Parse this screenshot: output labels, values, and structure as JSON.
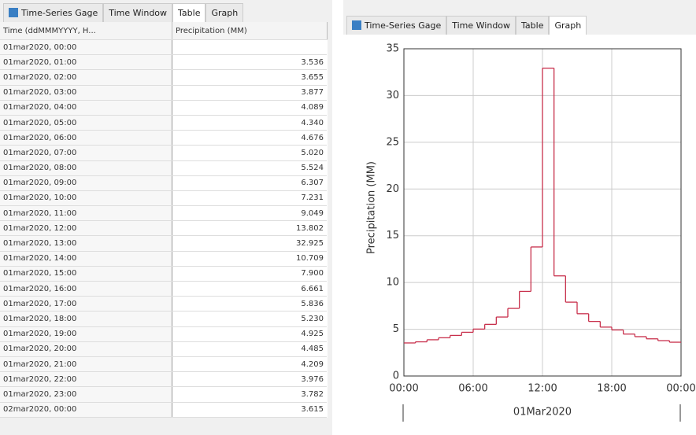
{
  "left_panel": {
    "tabs": [
      "Time-Series Gage",
      "Time Window",
      "Table",
      "Graph"
    ],
    "table": {
      "headers": [
        "Time (ddMMMYYYY, H...",
        "Precipitation (MM)"
      ],
      "rows": [
        [
          "01mar2020, 00:00",
          ""
        ],
        [
          "01mar2020, 01:00",
          "3.536"
        ],
        [
          "01mar2020, 02:00",
          "3.655"
        ],
        [
          "01mar2020, 03:00",
          "3.877"
        ],
        [
          "01mar2020, 04:00",
          "4.089"
        ],
        [
          "01mar2020, 05:00",
          "4.340"
        ],
        [
          "01mar2020, 06:00",
          "4.676"
        ],
        [
          "01mar2020, 07:00",
          "5.020"
        ],
        [
          "01mar2020, 08:00",
          "5.524"
        ],
        [
          "01mar2020, 09:00",
          "6.307"
        ],
        [
          "01mar2020, 10:00",
          "7.231"
        ],
        [
          "01mar2020, 11:00",
          "9.049"
        ],
        [
          "01mar2020, 12:00",
          "13.802"
        ],
        [
          "01mar2020, 13:00",
          "32.925"
        ],
        [
          "01mar2020, 14:00",
          "10.709"
        ],
        [
          "01mar2020, 15:00",
          "7.900"
        ],
        [
          "01mar2020, 16:00",
          "6.661"
        ],
        [
          "01mar2020, 17:00",
          "5.836"
        ],
        [
          "01mar2020, 18:00",
          "5.230"
        ],
        [
          "01mar2020, 19:00",
          "4.925"
        ],
        [
          "01mar2020, 20:00",
          "4.485"
        ],
        [
          "01mar2020, 21:00",
          "4.209"
        ],
        [
          "01mar2020, 22:00",
          "3.976"
        ],
        [
          "01mar2020, 23:00",
          "3.782"
        ],
        [
          "02mar2020, 00:00",
          "3.615"
        ]
      ]
    }
  },
  "right_panel": {
    "tabs": [
      "Time-Series Gage",
      "Time Window",
      "Table",
      "Graph"
    ]
  },
  "chart_data": {
    "type": "step",
    "x_label": "01Mar2020",
    "y_label": "Precipitation (MM)",
    "x": [
      1,
      2,
      3,
      4,
      5,
      6,
      7,
      8,
      9,
      10,
      11,
      12,
      13,
      14,
      15,
      16,
      17,
      18,
      19,
      20,
      21,
      22,
      23,
      24
    ],
    "series": [
      {
        "name": "Precipitation",
        "color": "#c8304c",
        "values": [
          3.536,
          3.655,
          3.877,
          4.089,
          4.34,
          4.676,
          5.02,
          5.524,
          6.307,
          7.231,
          9.049,
          13.802,
          32.925,
          10.709,
          7.9,
          6.661,
          5.836,
          5.23,
          4.925,
          4.485,
          4.209,
          3.976,
          3.782,
          3.615
        ]
      }
    ],
    "xlim": [
      0,
      24
    ],
    "xticks": [
      {
        "value": 0,
        "label": "00:00"
      },
      {
        "value": 6,
        "label": "06:00"
      },
      {
        "value": 12,
        "label": "12:00"
      },
      {
        "value": 18,
        "label": "18:00"
      },
      {
        "value": 24,
        "label": "00:00"
      }
    ],
    "ylim": [
      0,
      35
    ],
    "yticks": [
      0,
      5,
      10,
      15,
      20,
      25,
      30,
      35
    ],
    "grid": true
  }
}
